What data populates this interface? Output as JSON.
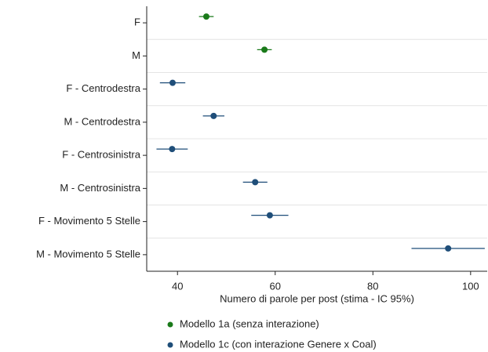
{
  "chart_data": {
    "type": "dot_errorbar",
    "xlabel": "Numero di parole per post (stima - IC 95%)",
    "categories": [
      "F",
      "M",
      "F - Centrodestra",
      "M - Centrodestra",
      "F - Centrosinistra",
      "M - Centrosinistra",
      "F - Movimento 5 Stelle",
      "M - Movimento 5 Stelle"
    ],
    "series": [
      {
        "name": "Modello 1a (senza interazione)",
        "color": "#1a7a1a",
        "values": [
          45.9,
          57.8,
          null,
          null,
          null,
          null,
          null,
          null
        ],
        "errors": [
          1.5,
          1.5,
          null,
          null,
          null,
          null,
          null,
          null
        ]
      },
      {
        "name": "Modello 1c (con interazione Genere x Coal)",
        "color": "#1f4e79",
        "values": [
          null,
          null,
          39.0,
          47.4,
          38.9,
          55.9,
          58.9,
          95.4
        ],
        "errors": [
          null,
          null,
          2.6,
          2.2,
          3.2,
          2.5,
          3.8,
          7.5
        ]
      }
    ],
    "xlim": [
      33.7,
      103.4
    ],
    "xticks": [
      40,
      60,
      80,
      100
    ],
    "grid": true
  }
}
